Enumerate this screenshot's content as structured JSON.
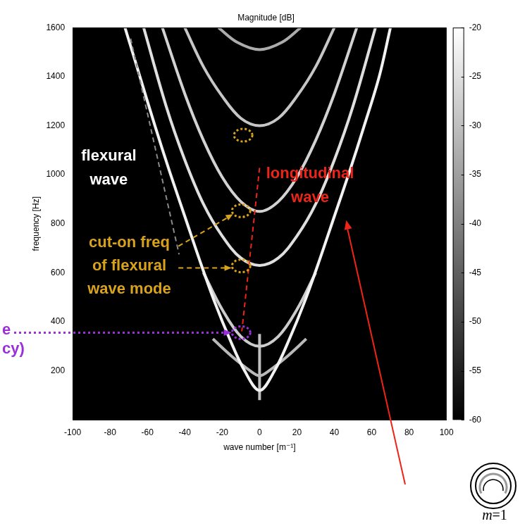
{
  "chart_data": {
    "type": "line",
    "title": "Magnitude [dB]",
    "x_label": "wave number [m⁻¹]",
    "y_label": "frequency [Hz]",
    "xlim": [
      -100,
      100
    ],
    "xticks": [
      -100,
      -80,
      -60,
      -40,
      -20,
      0,
      20,
      40,
      60,
      80,
      100
    ],
    "ylim": [
      0,
      1600
    ],
    "yticks": [
      200,
      400,
      600,
      800,
      1000,
      1200,
      1400,
      1600
    ],
    "grid": false,
    "colorbar": {
      "range": [
        -60,
        -20
      ],
      "ticks": [
        -60,
        -55,
        -50,
        -45,
        -40,
        -35,
        -30,
        -25,
        -20
      ]
    },
    "series": [
      {
        "level": -22,
        "x": [
          -72,
          -64,
          -56,
          -48,
          -40,
          -32,
          -24,
          -16,
          -8,
          0,
          8,
          16,
          24,
          32,
          40,
          48,
          56,
          64,
          70
        ],
        "values": [
          1600,
          1400,
          1200,
          1010,
          830,
          650,
          480,
          330,
          200,
          120,
          200,
          330,
          480,
          650,
          830,
          1010,
          1200,
          1400,
          1600
        ]
      },
      {
        "level": -25,
        "x": [
          -62,
          -50,
          -40,
          -30,
          -20,
          -10,
          0,
          10,
          20,
          30,
          40,
          50,
          62
        ],
        "values": [
          1600,
          1280,
          1060,
          880,
          750,
          660,
          630,
          660,
          750,
          880,
          1060,
          1280,
          1600
        ]
      },
      {
        "level": -27,
        "x": [
          -52,
          -40,
          -30,
          -20,
          -10,
          0,
          10,
          20,
          30,
          40,
          52
        ],
        "values": [
          1600,
          1330,
          1140,
          990,
          890,
          850,
          890,
          990,
          1140,
          1330,
          1600
        ]
      },
      {
        "level": -29,
        "x": [
          -40,
          -30,
          -20,
          -10,
          0,
          10,
          20,
          30,
          40
        ],
        "values": [
          1600,
          1440,
          1320,
          1230,
          1200,
          1230,
          1320,
          1440,
          1600
        ]
      },
      {
        "level": -33,
        "x": [
          -22,
          -12,
          0,
          12,
          22
        ],
        "values": [
          1600,
          1540,
          1510,
          1540,
          1600
        ]
      },
      {
        "level": -28,
        "x": [
          -30,
          -20,
          -10,
          0,
          10,
          20,
          30
        ],
        "values": [
          600,
          450,
          340,
          300,
          340,
          450,
          600
        ]
      },
      {
        "level": -31,
        "x": [
          -25,
          -15,
          -5,
          0,
          5,
          15,
          25
        ],
        "values": [
          330,
          260,
          200,
          180,
          200,
          260,
          330
        ]
      },
      {
        "level": -30,
        "x": [
          0,
          0
        ],
        "values": [
          80,
          350
        ]
      }
    ],
    "annotations": [
      {
        "text": [
          "flexural",
          "wave"
        ],
        "color": "#ffffff"
      },
      {
        "text": [
          "longitudinal",
          "wave"
        ],
        "color": "#ee2418"
      },
      {
        "text": [
          "cut-on freq",
          "of flexural",
          "wave mode"
        ],
        "color": "#d9a21b"
      },
      {
        "text": [
          "e",
          "cy)"
        ],
        "color": "#9b30d9"
      },
      {
        "text": [
          "m=1"
        ],
        "color": "#000000"
      }
    ]
  }
}
